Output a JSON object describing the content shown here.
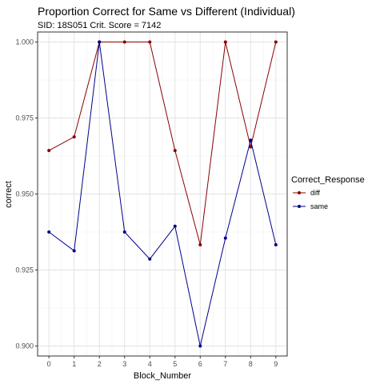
{
  "chart_data": {
    "type": "line",
    "title": "Proportion Correct for Same vs Different (Individual)",
    "subtitle": "SID:  18S051 Crit. Score =  7142",
    "xlabel": "Block_Number",
    "ylabel": "correct",
    "x": [
      0,
      1,
      2,
      3,
      4,
      5,
      6,
      7,
      8,
      9
    ],
    "xticks": [
      "0",
      "1",
      "2",
      "3",
      "4",
      "5",
      "6",
      "7",
      "8",
      "9"
    ],
    "yticks": [
      "0.900",
      "0.925",
      "0.950",
      "0.975",
      "1.000"
    ],
    "ylim": [
      0.8967,
      1.0033
    ],
    "xlim": [
      -0.45,
      9.45
    ],
    "grid": true,
    "legend_title": "Correct_Response",
    "legend_placement": "right",
    "series": [
      {
        "name": "diff",
        "color": "#8b0000",
        "values": [
          0.9643,
          0.9688,
          1.0,
          1.0,
          1.0,
          0.9643,
          0.9333,
          1.0,
          0.9655,
          1.0
        ]
      },
      {
        "name": "same",
        "color": "#00008b",
        "values": [
          0.9375,
          0.9313,
          1.0,
          0.9375,
          0.9286,
          0.9394,
          0.9,
          0.9355,
          0.9677,
          0.9333
        ]
      }
    ]
  }
}
